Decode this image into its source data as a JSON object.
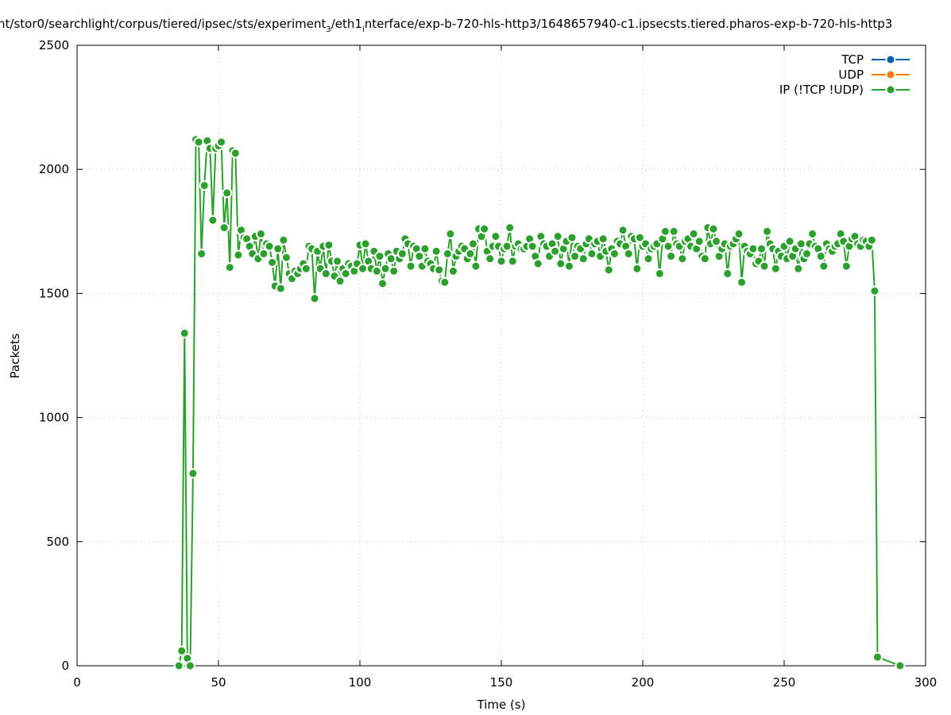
{
  "chart_data": {
    "type": "line",
    "title_parts": [
      "nt/stor0/searchlight/corpus/tiered/ipsec/sts/experiment",
      "3",
      "/eth1",
      "i",
      "nterface/exp-b-720-hls-http3/1648657940-c1.ipsecsts.tiered.pharos-exp-b-720-hls-http3"
    ],
    "xlabel": "Time (s)",
    "ylabel": "Packets",
    "xlim": [
      0,
      300
    ],
    "ylim": [
      0,
      2500
    ],
    "xticks": [
      0,
      50,
      100,
      150,
      200,
      250,
      300
    ],
    "yticks": [
      0,
      500,
      1000,
      1500,
      2000,
      2500
    ],
    "grid": true,
    "legend_position": "top-right",
    "legend": [
      {
        "name": "TCP",
        "color": "#0060ad"
      },
      {
        "name": "UDP",
        "color": "#f57c00"
      },
      {
        "name": "IP (!TCP  !UDP)",
        "color": "#2ca02c"
      }
    ],
    "series": [
      {
        "name": "IP (!TCP  !UDP)",
        "color": "#2ca02c",
        "start_t": 36,
        "values": [
          0,
          60,
          1340,
          30,
          0,
          775,
          2120,
          2110,
          1660,
          1935,
          2115,
          2085,
          1795,
          2085,
          2095,
          2110,
          1765,
          1905,
          1605,
          2075,
          2065,
          1655,
          1755,
          1725,
          1720,
          1690,
          1660,
          1730,
          1640,
          1740,
          1660,
          1700,
          1690,
          1625,
          1530,
          1680,
          1520,
          1715,
          1645,
          1580,
          1560,
          1590,
          1580,
          1600,
          1620,
          1600,
          1690,
          1680,
          1480,
          1670,
          1600,
          1690,
          1580,
          1695,
          1630,
          1570,
          1630,
          1550,
          1600,
          1580,
          1620,
          1610,
          1590,
          1620,
          1695,
          1600,
          1700,
          1630,
          1600,
          1670,
          1590,
          1650,
          1540,
          1600,
          1660,
          1640,
          1590,
          1670,
          1640,
          1660,
          1720,
          1700,
          1610,
          1690,
          1680,
          1650,
          1610,
          1680,
          1630,
          1620,
          1600,
          1670,
          1595,
          1550,
          1545,
          1660,
          1740,
          1590,
          1650,
          1670,
          1690,
          1680,
          1640,
          1660,
          1700,
          1610,
          1760,
          1730,
          1760,
          1670,
          1640,
          1690,
          1730,
          1690,
          1630,
          1680,
          1690,
          1765,
          1630,
          1690,
          1700,
          1680,
          1680,
          1690,
          1720,
          1690,
          1650,
          1620,
          1730,
          1700,
          1690,
          1650,
          1700,
          1670,
          1730,
          1620,
          1680,
          1710,
          1610,
          1725,
          1650,
          1690,
          1680,
          1640,
          1700,
          1720,
          1660,
          1700,
          1710,
          1650,
          1720,
          1670,
          1595,
          1680,
          1660,
          1710,
          1700,
          1755,
          1690,
          1660,
          1730,
          1720,
          1600,
          1725,
          1690,
          1700,
          1640,
          1680,
          1690,
          1700,
          1580,
          1720,
          1750,
          1690,
          1650,
          1750,
          1700,
          1690,
          1640,
          1710,
          1720,
          1690,
          1740,
          1680,
          1710,
          1650,
          1640,
          1765,
          1700,
          1760,
          1710,
          1650,
          1680,
          1700,
          1580,
          1690,
          1700,
          1720,
          1740,
          1545,
          1690,
          1670,
          1660,
          1680,
          1620,
          1630,
          1680,
          1610,
          1750,
          1700,
          1680,
          1600,
          1670,
          1650,
          1690,
          1640,
          1710,
          1650,
          1680,
          1600,
          1700,
          1640,
          1660,
          1700,
          1740,
          1690,
          1680,
          1650,
          1610,
          1700,
          1680,
          1670,
          1690,
          1700,
          1740,
          1710,
          1610,
          1690,
          1720,
          1730,
          1700,
          1690,
          1715,
          1710,
          1690,
          1715,
          1510,
          35
        ],
        "extra_points": [
          [
            291,
            0
          ]
        ]
      }
    ]
  }
}
